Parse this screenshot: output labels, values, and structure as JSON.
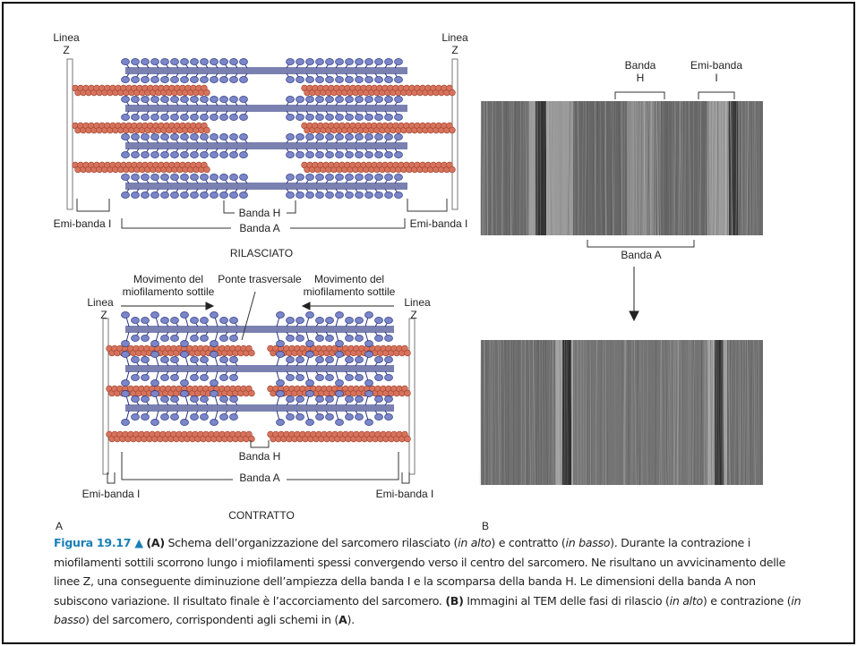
{
  "panel_a": {
    "label": "A",
    "relaxed": {
      "z_left": [
        "Linea",
        "Z"
      ],
      "z_right": [
        "Linea",
        "Z"
      ],
      "h_band": "Banda H",
      "a_band": "Banda A",
      "half_i_left": "Emi-banda I",
      "half_i_right": "Emi-banda I",
      "state": "RILASCIATO"
    },
    "contracted": {
      "movement_left": [
        "Movimento del",
        "miofilamento sottile"
      ],
      "cross_bridge": "Ponte trasversale",
      "movement_right": [
        "Movimento del",
        "miofilamento sottile"
      ],
      "z_left": [
        "Linea",
        "Z"
      ],
      "z_right": [
        "Linea",
        "Z"
      ],
      "h_band": "Banda H",
      "a_band": "Banda A",
      "half_i_left": "Emi-banda I",
      "half_i_right": "Emi-banda I",
      "state": "CONTRATTO"
    }
  },
  "panel_b": {
    "label": "B",
    "h_band": [
      "Banda",
      "H"
    ],
    "half_i": [
      "Emi-banda",
      "I"
    ],
    "a_band": "Banda A"
  },
  "caption": {
    "parts": [
      "Figura 19.17 ▲",
      "(A)",
      " Schema dell’organizzazione del sarcomero rilasciato (",
      "in alto",
      ") e contratto (",
      "in basso",
      "). Durante la contrazione i miofilamenti sottili scorrono lungo i miofilamenti spessi convergendo verso il centro del sarcomero. Ne risultano un avvicinamento delle linee Z, una conseguente diminuzione  dell’ampiezza della banda I e la scomparsa della banda H. Le dimensioni della banda A non subiscono variazione. Il risultato finale è l’accorciamento del sarcomero. ",
      "(B)",
      " Immagini al TEM delle fasi di rilascio (",
      "in alto",
      ") e contrazione (",
      "in basso",
      ") del sarcomero, corrispondenti agli schemi in (",
      "A",
      ")."
    ]
  }
}
